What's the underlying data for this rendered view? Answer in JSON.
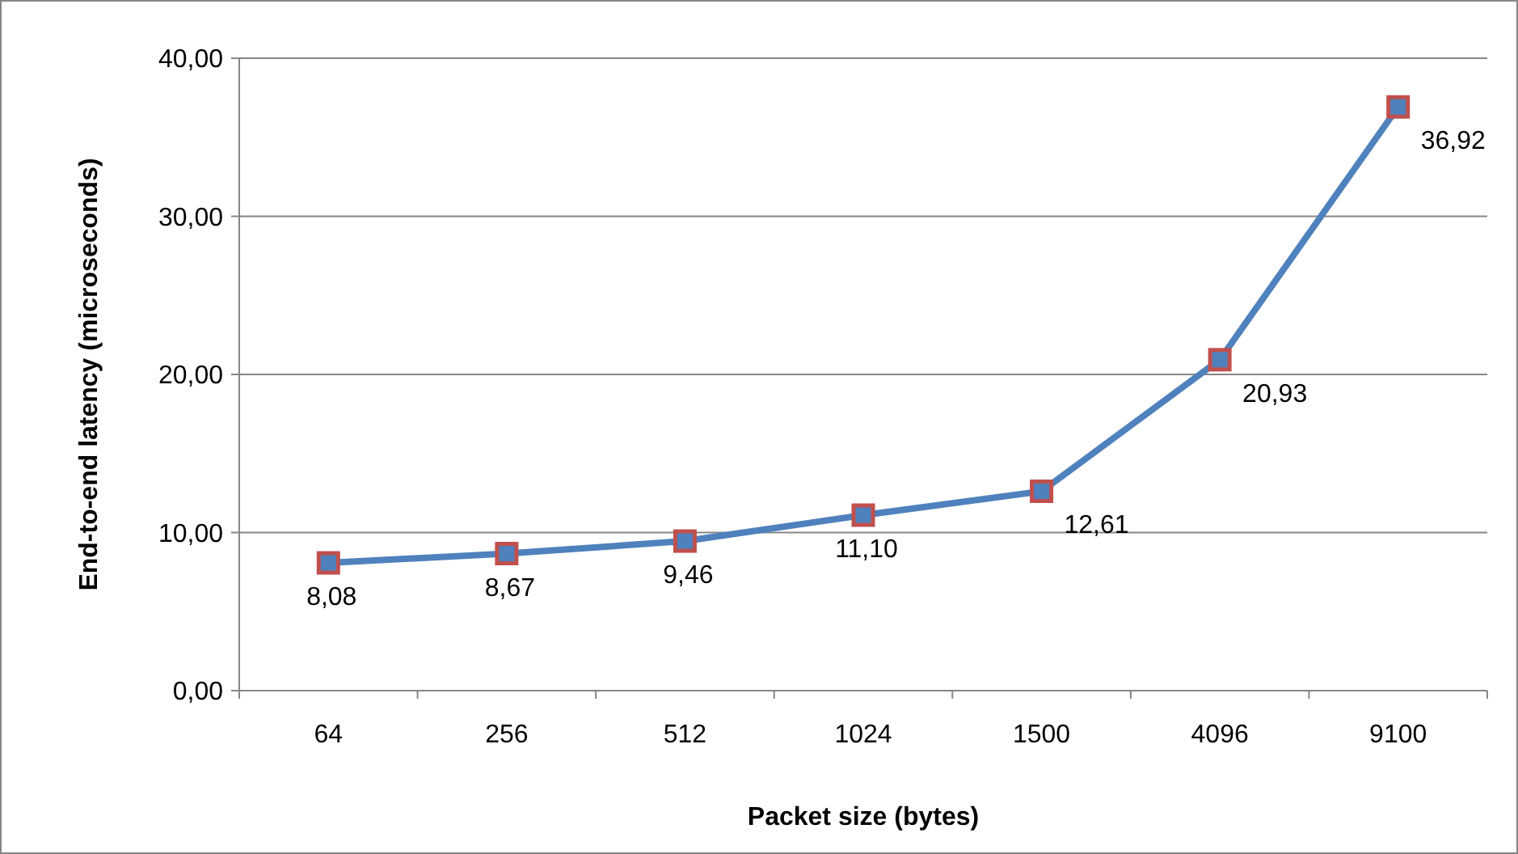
{
  "chart_data": {
    "type": "line",
    "xlabel": "Packet size (bytes)",
    "ylabel": "End-to-end latency (microseconds)",
    "categories": [
      "64",
      "256",
      "512",
      "1024",
      "1500",
      "4096",
      "9100"
    ],
    "series": [
      {
        "color": "#4f81bd",
        "values": [
          8.08,
          8.67,
          9.46,
          11.1,
          12.61,
          20.93,
          36.92
        ],
        "value_labels": [
          "8,08",
          "8,67",
          "9,46",
          "11,10",
          "12,61",
          "20,93",
          "36,92"
        ]
      }
    ],
    "ylim": [
      0,
      40
    ],
    "yticks": [
      {
        "value": 0,
        "label": "0,00"
      },
      {
        "value": 10,
        "label": "10,00"
      },
      {
        "value": 20,
        "label": "20,00"
      },
      {
        "value": 30,
        "label": "30,00"
      },
      {
        "value": 40,
        "label": "40,00"
      }
    ],
    "grid": "y",
    "marker": "square",
    "line_style": "solid"
  }
}
